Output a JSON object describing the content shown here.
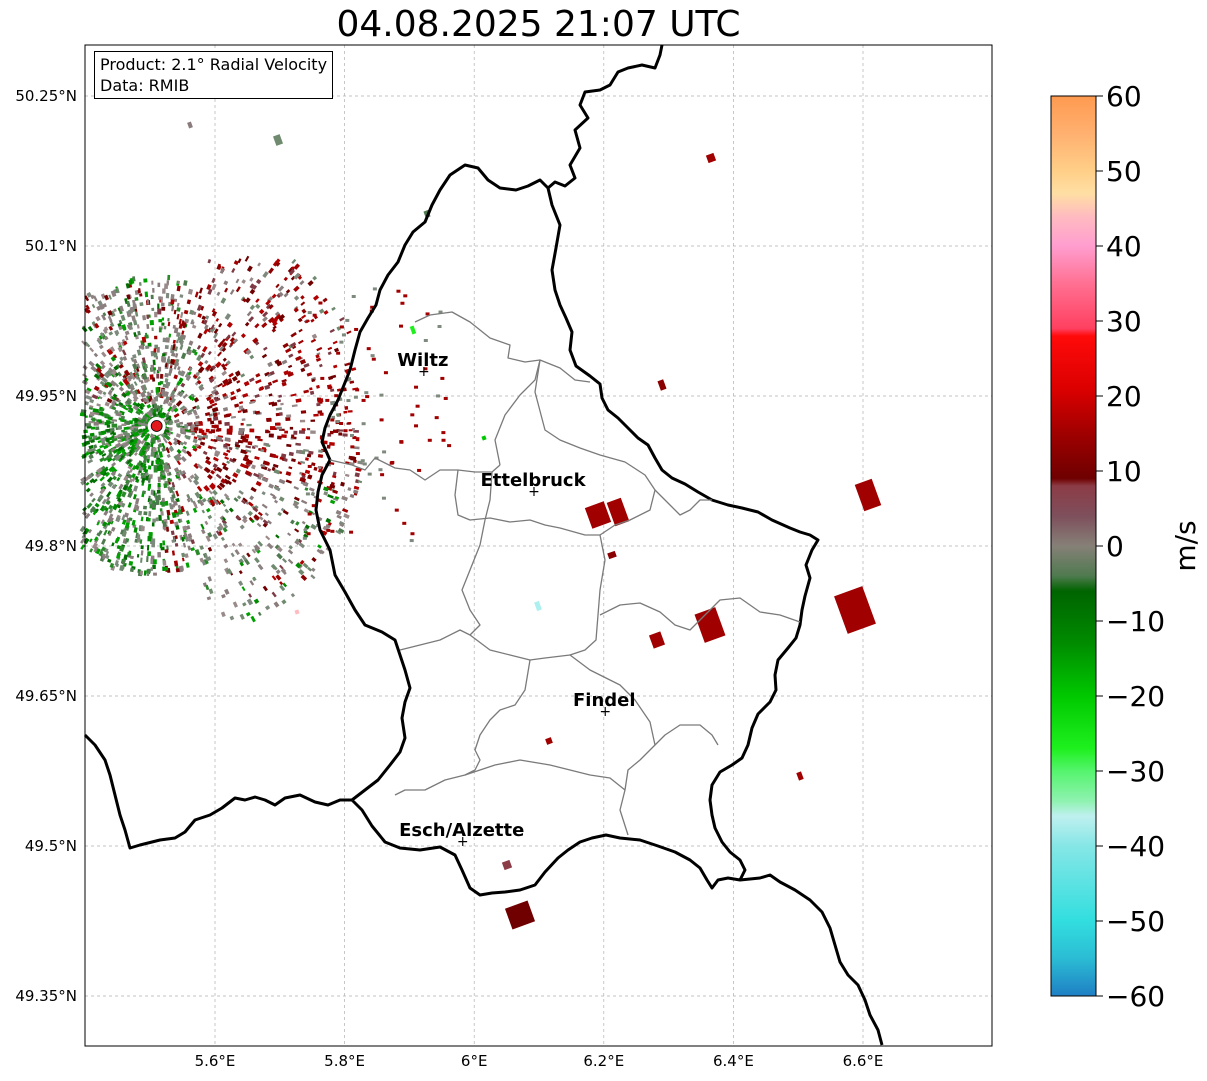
{
  "title": "04.08.2025 21:07 UTC",
  "info": {
    "product": "Product: 2.1° Radial Velocity",
    "data": "Data: RMIB"
  },
  "lat_ticks": [
    "50.25°N",
    "50.1°N",
    "49.95°N",
    "49.8°N",
    "49.65°N",
    "49.5°N",
    "49.35°N"
  ],
  "lon_ticks": [
    "5.6°E",
    "5.8°E",
    "6°E",
    "6.2°E",
    "6.4°E",
    "6.6°E"
  ],
  "cities": [
    {
      "name": "Wiltz",
      "lon": 5.93,
      "lat": 49.97
    },
    {
      "name": "Ettelbruck",
      "lon": 6.1,
      "lat": 49.85
    },
    {
      "name": "Findel",
      "lon": 6.21,
      "lat": 49.63
    },
    {
      "name": "Esch/Alzette",
      "lon": 5.99,
      "lat": 49.5
    }
  ],
  "radar_site": {
    "lon": 5.51,
    "lat": 49.92
  },
  "colorbar": {
    "label": "m/s",
    "min": -60,
    "max": 60,
    "ticks": [
      "60",
      "50",
      "40",
      "30",
      "20",
      "10",
      "0",
      "−10",
      "−20",
      "−30",
      "−40",
      "−50",
      "−60"
    ],
    "stops": [
      {
        "v": -60,
        "c": "#1f7fc4"
      },
      {
        "v": -55,
        "c": "#2bbcd4"
      },
      {
        "v": -50,
        "c": "#32dedf"
      },
      {
        "v": -40,
        "c": "#86e6e6"
      },
      {
        "v": -36,
        "c": "#bff0ef"
      },
      {
        "v": -34,
        "c": "#8ff2b0"
      },
      {
        "v": -30,
        "c": "#55f46e"
      },
      {
        "v": -27,
        "c": "#1ef01e"
      },
      {
        "v": -20,
        "c": "#00c800"
      },
      {
        "v": -13,
        "c": "#008c00"
      },
      {
        "v": -6,
        "c": "#006400"
      },
      {
        "v": -4,
        "c": "#4f7a4f"
      },
      {
        "v": 0,
        "c": "#868077"
      },
      {
        "v": 4,
        "c": "#7e4f5c"
      },
      {
        "v": 8,
        "c": "#8c3c46"
      },
      {
        "v": 9,
        "c": "#6e0000"
      },
      {
        "v": 15,
        "c": "#a00000"
      },
      {
        "v": 21,
        "c": "#dc0000"
      },
      {
        "v": 28,
        "c": "#ff0a0a"
      },
      {
        "v": 29,
        "c": "#ff4060"
      },
      {
        "v": 35,
        "c": "#ff7092"
      },
      {
        "v": 40,
        "c": "#ff9ecf"
      },
      {
        "v": 44,
        "c": "#ffbcc0"
      },
      {
        "v": 47,
        "c": "#ffdfa4"
      },
      {
        "v": 50,
        "c": "#ffcf88"
      },
      {
        "v": 55,
        "c": "#ffb070"
      },
      {
        "v": 60,
        "c": "#ff9a50"
      }
    ]
  },
  "colors": {
    "border": "#000000",
    "canton": "#7a7a7a",
    "grid": "#b0b0b0",
    "radar_site": "#e31a1c"
  }
}
